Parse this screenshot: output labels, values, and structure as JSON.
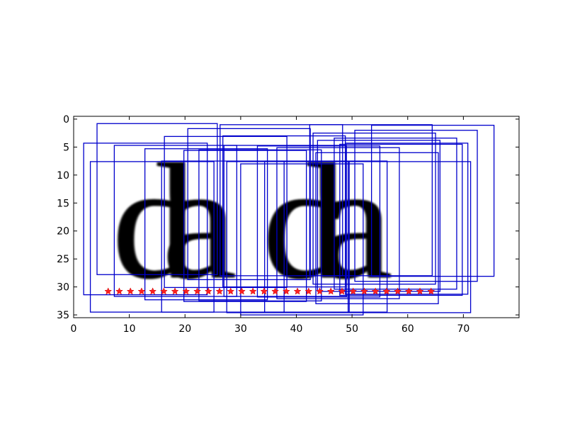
{
  "chart_data": {
    "type": "scatter",
    "title": "",
    "xlabel": "",
    "ylabel": "",
    "xlim": [
      0,
      80
    ],
    "ylim": [
      35.5,
      -0.5
    ],
    "xticks": [
      0,
      10,
      20,
      30,
      40,
      50,
      60,
      70
    ],
    "yticks": [
      0,
      5,
      10,
      15,
      20,
      25,
      30,
      35
    ],
    "y_inverted": true,
    "grid": false,
    "background_image_text": "dada",
    "glyph_colors": [
      "#000000",
      "#c86400",
      "#1a6fd0"
    ],
    "points_color": "#ff2020",
    "points_marker": "star",
    "points": {
      "x": [
        6.2,
        8.2,
        10.2,
        12.2,
        14.2,
        16.2,
        18.2,
        20.2,
        22.2,
        24.2,
        26.2,
        28.2,
        30.2,
        32.2,
        34.2,
        36.2,
        38.2,
        40.2,
        42.2,
        44.2,
        46.2,
        48.2,
        50.2,
        52.2,
        54.2,
        56.2,
        58.2,
        60.2,
        62.2,
        64.2
      ],
      "y": [
        30.8,
        30.8,
        30.8,
        30.8,
        30.8,
        30.8,
        30.8,
        30.8,
        30.8,
        30.8,
        30.8,
        30.8,
        30.8,
        30.8,
        30.8,
        30.8,
        30.8,
        30.8,
        30.8,
        30.8,
        30.8,
        30.8,
        30.8,
        30.8,
        30.8,
        30.8,
        30.8,
        30.8,
        30.8,
        30.8
      ]
    },
    "box_color": "#0000cc",
    "boxes": [
      [
        4.2,
        0.8,
        25.8,
        27.8
      ],
      [
        1.8,
        4.3,
        24.0,
        31.4
      ],
      [
        3.0,
        7.6,
        25.2,
        34.5
      ],
      [
        7.3,
        4.7,
        29.3,
        31.7
      ],
      [
        12.8,
        5.3,
        34.8,
        32.3
      ],
      [
        16.3,
        3.1,
        38.3,
        30.1
      ],
      [
        20.5,
        1.7,
        42.5,
        28.7
      ],
      [
        15.8,
        7.5,
        37.8,
        34.5
      ],
      [
        19.8,
        5.6,
        41.8,
        32.6
      ],
      [
        26.3,
        1.0,
        48.3,
        28.0
      ],
      [
        26.8,
        3.0,
        48.8,
        30.0
      ],
      [
        27.5,
        7.6,
        49.5,
        34.6
      ],
      [
        27.0,
        4.7,
        49.0,
        31.7
      ],
      [
        33.0,
        4.8,
        55.0,
        31.8
      ],
      [
        36.5,
        5.1,
        58.5,
        32.1
      ],
      [
        34.3,
        7.5,
        56.3,
        34.5
      ],
      [
        42.4,
        1.0,
        64.4,
        28.0
      ],
      [
        43.8,
        3.8,
        65.8,
        30.8
      ],
      [
        43.0,
        2.5,
        65.0,
        29.5
      ],
      [
        43.5,
        6.0,
        65.5,
        33.0
      ],
      [
        47.8,
        4.5,
        69.8,
        31.5
      ],
      [
        49.3,
        7.6,
        71.3,
        34.6
      ],
      [
        50.5,
        2.0,
        72.5,
        29.0
      ],
      [
        53.5,
        1.1,
        75.5,
        28.1
      ],
      [
        48.8,
        4.3,
        70.8,
        31.3
      ],
      [
        46.8,
        3.4,
        68.8,
        30.4
      ],
      [
        30.0,
        8.0,
        52.0,
        35.0
      ],
      [
        22.5,
        5.5,
        44.5,
        32.5
      ]
    ]
  }
}
